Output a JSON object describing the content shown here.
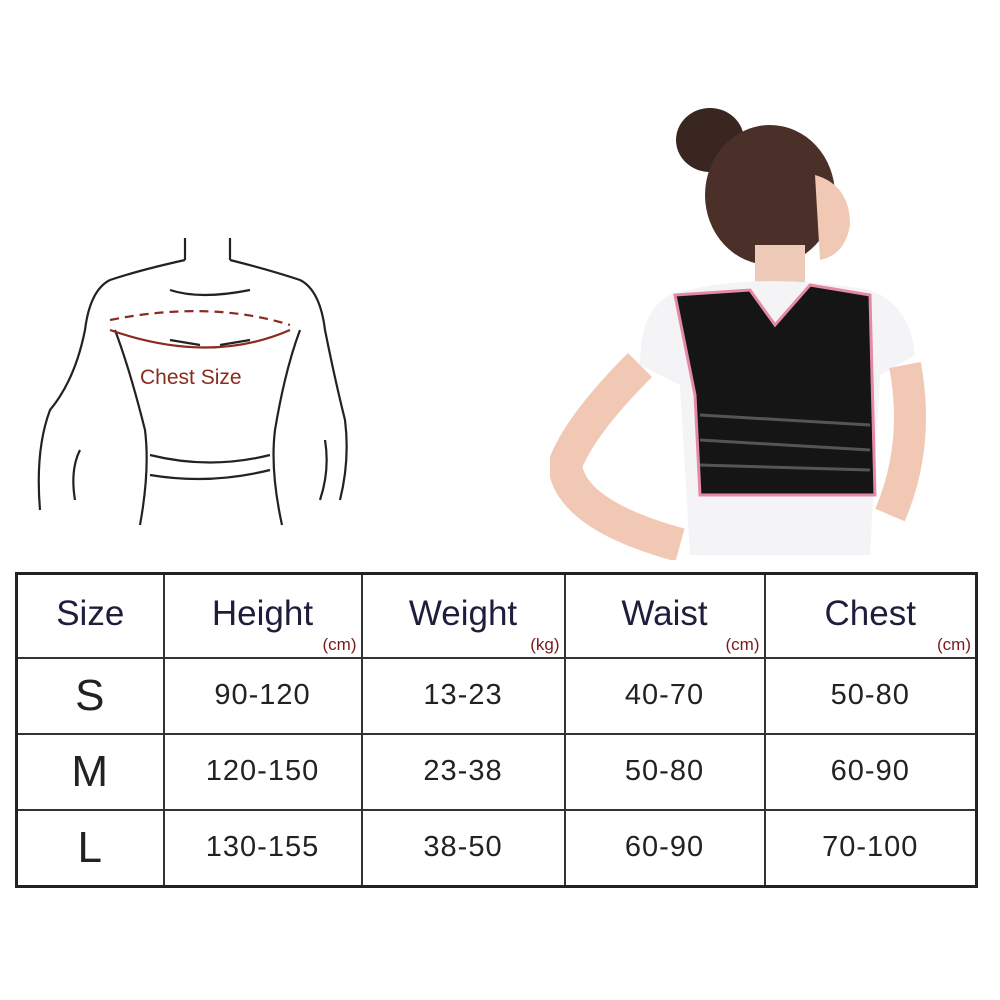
{
  "diagram": {
    "chest_label": "Chest Size"
  },
  "table": {
    "headers": [
      {
        "label": "Size",
        "unit": ""
      },
      {
        "label": "Height",
        "unit": "(cm)"
      },
      {
        "label": "Weight",
        "unit": "(kg)"
      },
      {
        "label": "Waist",
        "unit": "(cm)"
      },
      {
        "label": "Chest",
        "unit": "(cm)"
      }
    ],
    "rows": [
      [
        "S",
        "90-120",
        "13-23",
        "40-70",
        "50-80"
      ],
      [
        "M",
        "120-150",
        "23-38",
        "50-80",
        "60-90"
      ],
      [
        "L",
        "130-155",
        "38-50",
        "60-90",
        "70-100"
      ]
    ]
  },
  "colors": {
    "brace": "#111111",
    "trim": "#e58aa6",
    "chest_line": "#8b2a1e"
  }
}
